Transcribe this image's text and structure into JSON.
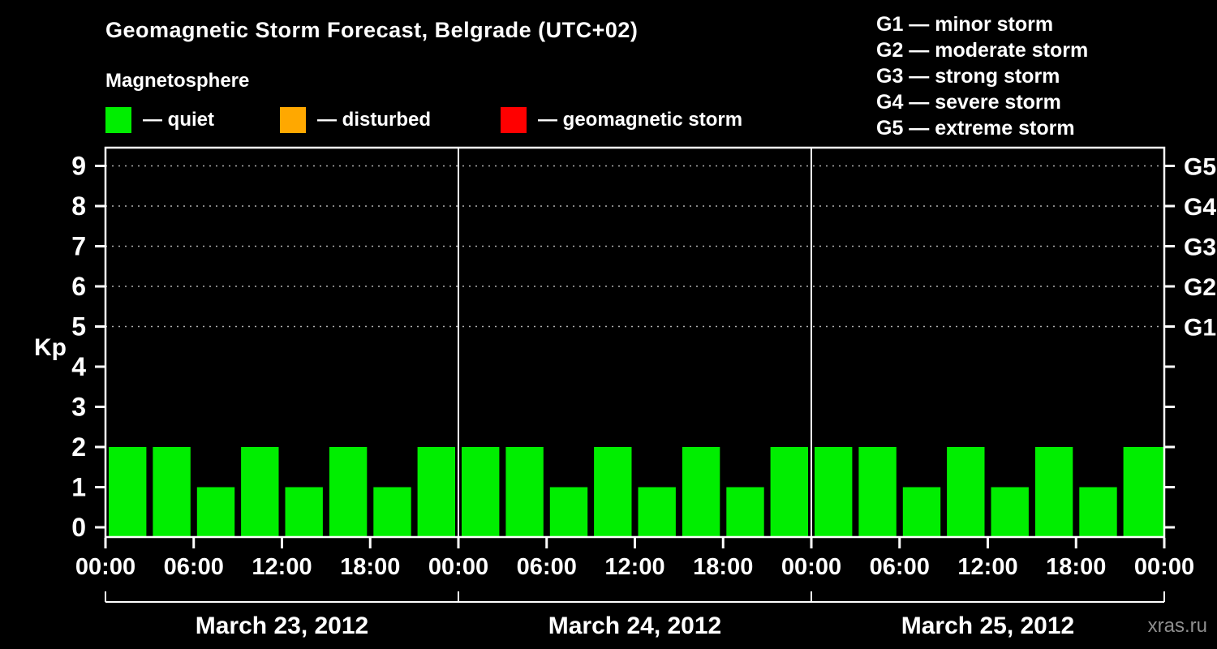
{
  "header": {
    "title": "Geomagnetic Storm Forecast, Belgrade (UTC+02)",
    "subtitle": "Magnetosphere"
  },
  "legend": {
    "items": [
      {
        "name": "quiet",
        "label": "— quiet",
        "color": "#00ee00"
      },
      {
        "name": "disturbed",
        "label": "— disturbed",
        "color": "#ffa800"
      },
      {
        "name": "storm",
        "label": "— geomagnetic storm",
        "color": "#ff0000"
      }
    ]
  },
  "storm_scale_legend": [
    "G1 — minor storm",
    "G2 — moderate storm",
    "G3 — strong storm",
    "G4 — severe storm",
    "G5 — extreme storm"
  ],
  "watermark": "xras.ru",
  "chart_data": {
    "type": "bar",
    "title": "Geomagnetic Storm Forecast, Belgrade (UTC+02)",
    "ylabel": "Kp",
    "ylim": [
      0,
      9.5
    ],
    "yticks": [
      0,
      1,
      2,
      3,
      4,
      5,
      6,
      7,
      8,
      9
    ],
    "gridline_levels": [
      5,
      6,
      7,
      8,
      9
    ],
    "right_axis": [
      {
        "label": "G5",
        "kp": 9
      },
      {
        "label": "G4",
        "kp": 8
      },
      {
        "label": "G3",
        "kp": 7
      },
      {
        "label": "G2",
        "kp": 6
      },
      {
        "label": "G1",
        "kp": 5
      }
    ],
    "x_tick_labels": [
      "00:00",
      "06:00",
      "12:00",
      "18:00",
      "00:00",
      "06:00",
      "12:00",
      "18:00",
      "00:00",
      "06:00",
      "12:00",
      "18:00",
      "00:00"
    ],
    "interval_hours": 3,
    "days": [
      {
        "date": "March 23, 2012",
        "kp_values": [
          2,
          2,
          1,
          2,
          1,
          2,
          1,
          2
        ]
      },
      {
        "date": "March 24, 2012",
        "kp_values": [
          2,
          2,
          1,
          2,
          1,
          2,
          1,
          2
        ]
      },
      {
        "date": "March 25, 2012",
        "kp_values": [
          2,
          2,
          1,
          2,
          1,
          2,
          1,
          2
        ]
      }
    ],
    "trailing_partial_bar_kp": 2,
    "colors": {
      "quiet": "#00ee00",
      "disturbed": "#ffa800",
      "storm": "#ff0000",
      "axis": "#ffffff",
      "grid": "#b0b0b0"
    },
    "legend_position": "top",
    "grid": "dotted horizontal at G-levels"
  }
}
